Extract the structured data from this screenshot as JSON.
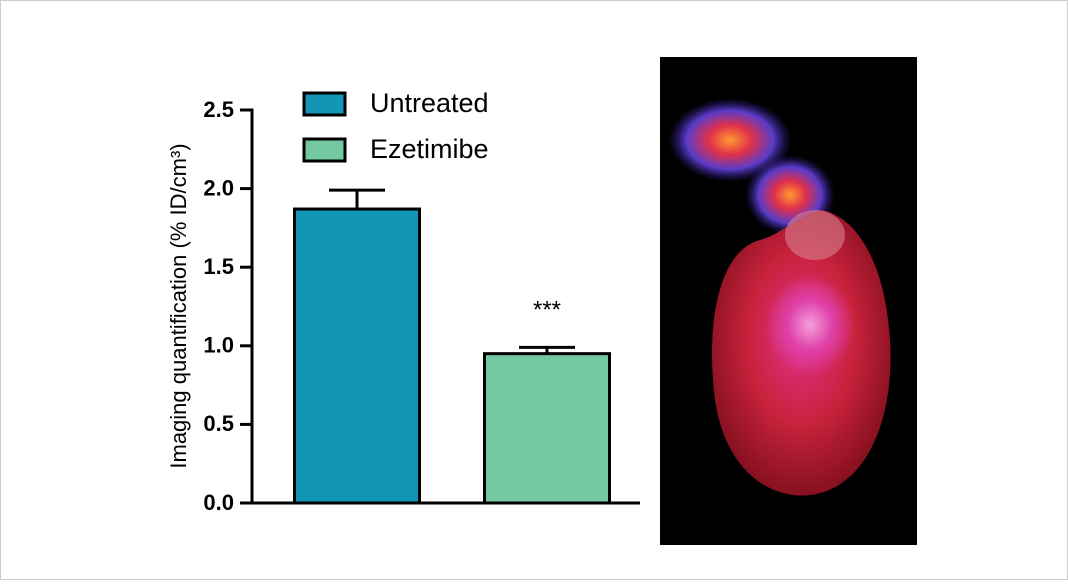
{
  "chart_data": {
    "type": "bar",
    "ylabel": "Imaging quantification (% ID/cm³)",
    "series": [
      {
        "name": "Untreated",
        "color": "#1396b3",
        "values": [
          1.87
        ],
        "errors": [
          0.12
        ]
      },
      {
        "name": "Ezetimibe",
        "color": "#74c8a1",
        "values": [
          0.95
        ],
        "errors": [
          0.04
        ]
      }
    ],
    "annotations": [
      {
        "text": "***",
        "series": 1
      }
    ],
    "ylim": [
      0,
      2.5
    ],
    "yticks": [
      {
        "value": 0,
        "label": "0.0"
      },
      0.5,
      {
        "value": 1,
        "label": "1.0"
      },
      1.5,
      {
        "value": 2,
        "label": "2.0"
      },
      2.5
    ],
    "legend": "top-left"
  }
}
